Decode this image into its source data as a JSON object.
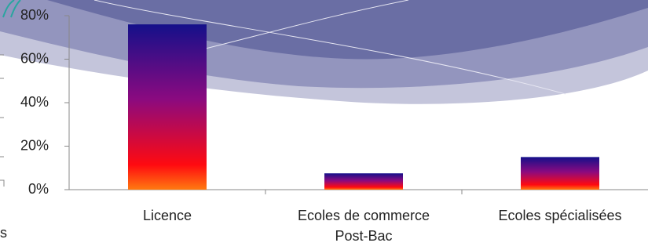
{
  "chart_data": {
    "type": "bar",
    "categories": [
      "Licence",
      "Ecoles de commerce Post-Bac",
      "Ecoles spécialisées"
    ],
    "values": [
      76,
      7.5,
      15
    ],
    "ylim": [
      0,
      80
    ],
    "yticks": [
      {
        "value": 0,
        "label": "0%"
      },
      {
        "value": 20,
        "label": "20%"
      },
      {
        "value": 40,
        "label": "40%"
      },
      {
        "value": 60,
        "label": "60%"
      },
      {
        "value": 80,
        "label": "80%"
      }
    ],
    "annotation": "s"
  }
}
